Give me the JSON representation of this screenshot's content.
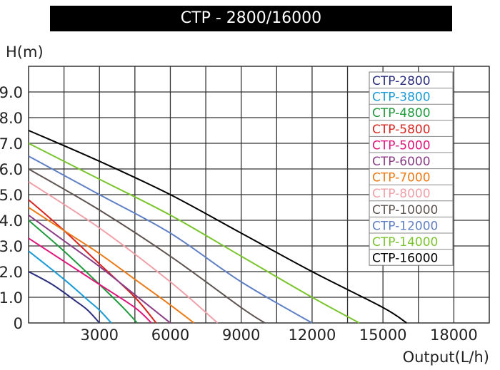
{
  "chart_data": {
    "type": "line",
    "title": "CTP - 2800/16000",
    "xlabel": "Output(L/h)",
    "ylabel": "H(m)",
    "xlim": [
      0,
      19500
    ],
    "ylim": [
      0,
      10
    ],
    "grid": true,
    "legend_position": "top-right",
    "x_ticks": [
      "3000",
      "6000",
      "9000",
      "12000",
      "15000",
      "18000"
    ],
    "y_ticks": [
      "0",
      "1.0",
      "2.0",
      "3.0",
      "4.0",
      "5.0",
      "6.0",
      "7.0",
      "8.0",
      "9.0"
    ],
    "series": [
      {
        "name": "CTP-2800",
        "color": "#2b2f7e",
        "points": [
          [
            0,
            2.0
          ],
          [
            1000,
            1.5
          ],
          [
            2000,
            0.85
          ],
          [
            2500,
            0.5
          ],
          [
            3000,
            0
          ]
        ]
      },
      {
        "name": "CTP-3800",
        "color": "#1a9ad6",
        "points": [
          [
            0,
            2.8
          ],
          [
            1500,
            1.7
          ],
          [
            2500,
            0.9
          ],
          [
            3000,
            0.5
          ],
          [
            3500,
            0
          ]
        ]
      },
      {
        "name": "CTP-4800",
        "color": "#1f9a3c",
        "points": [
          [
            0,
            4.0
          ],
          [
            1500,
            2.8
          ],
          [
            3000,
            1.5
          ],
          [
            4000,
            0.6
          ],
          [
            4600,
            0
          ]
        ]
      },
      {
        "name": "CTP-5800",
        "color": "#d8231f",
        "points": [
          [
            0,
            4.8
          ],
          [
            1500,
            3.6
          ],
          [
            3000,
            2.3
          ],
          [
            4500,
            1.0
          ],
          [
            5400,
            0
          ]
        ]
      },
      {
        "name": "CTP-5000",
        "color": "#e0147c",
        "points": [
          [
            0,
            3.3
          ],
          [
            1500,
            2.4
          ],
          [
            3000,
            1.5
          ],
          [
            4500,
            0.6
          ],
          [
            5200,
            0
          ]
        ]
      },
      {
        "name": "CTP-6000",
        "color": "#8a3d86",
        "points": [
          [
            0,
            4.2
          ],
          [
            1500,
            3.2
          ],
          [
            3000,
            2.2
          ],
          [
            4500,
            1.1
          ],
          [
            6000,
            0
          ]
        ]
      },
      {
        "name": "CTP-7000",
        "color": "#ec7a16",
        "points": [
          [
            0,
            4.5
          ],
          [
            1500,
            3.6
          ],
          [
            3000,
            2.7
          ],
          [
            4500,
            1.7
          ],
          [
            6000,
            0.7
          ],
          [
            7000,
            0
          ]
        ]
      },
      {
        "name": "CTP-8000",
        "color": "#f0a0a8",
        "points": [
          [
            0,
            5.5
          ],
          [
            3000,
            3.7
          ],
          [
            6000,
            1.6
          ],
          [
            8000,
            0
          ]
        ]
      },
      {
        "name": "CTP-10000",
        "color": "#5e5552",
        "points": [
          [
            0,
            6.0
          ],
          [
            3000,
            4.4
          ],
          [
            6000,
            2.6
          ],
          [
            9000,
            0.6
          ],
          [
            10000,
            0
          ]
        ]
      },
      {
        "name": "CTP-12000",
        "color": "#5e7fc4",
        "points": [
          [
            0,
            6.5
          ],
          [
            3000,
            5.0
          ],
          [
            6000,
            3.5
          ],
          [
            9000,
            1.6
          ],
          [
            12000,
            0
          ]
        ]
      },
      {
        "name": "CTP-14000",
        "color": "#7ac52e",
        "points": [
          [
            0,
            7.0
          ],
          [
            3000,
            5.6
          ],
          [
            6000,
            4.2
          ],
          [
            9000,
            2.6
          ],
          [
            12000,
            1.0
          ],
          [
            14000,
            0
          ]
        ]
      },
      {
        "name": "CTP-16000",
        "color": "#000000",
        "points": [
          [
            0,
            7.5
          ],
          [
            3000,
            6.3
          ],
          [
            6000,
            5.0
          ],
          [
            9000,
            3.5
          ],
          [
            12000,
            2.0
          ],
          [
            15000,
            0.6
          ],
          [
            16000,
            0
          ]
        ]
      }
    ]
  }
}
